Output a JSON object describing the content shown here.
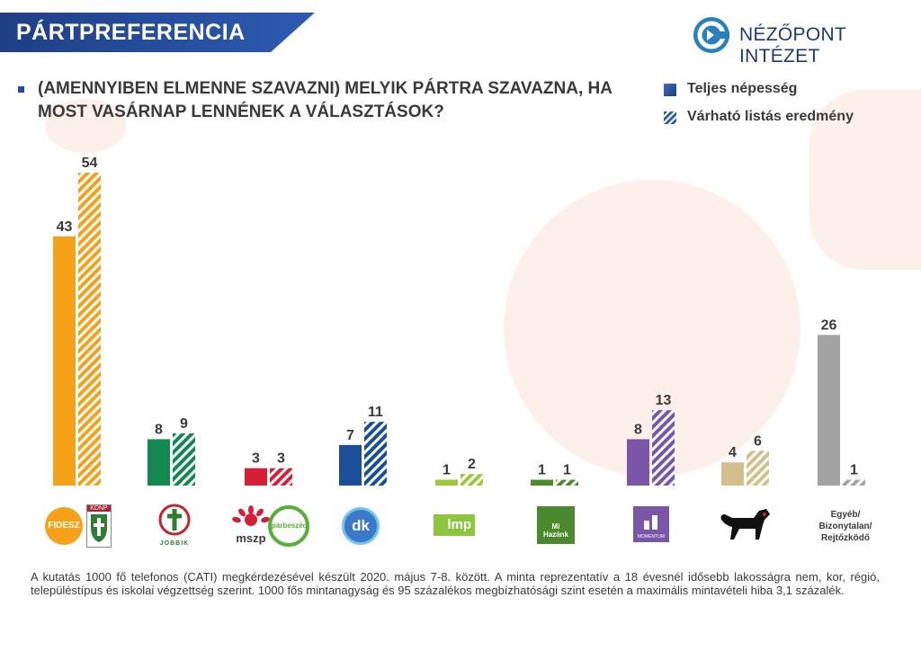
{
  "header": {
    "title": "PÁRTPREFERENCIA",
    "logo_text": "NÉZŐPONT INTÉZET"
  },
  "question": "(AMENNYIBEN ELMENNE SZAVAZNI) MELYIK PÁRTRA SZAVAZNA, HA MOST VASÁRNAP LENNÉNEK A VÁLASZTÁSOK?",
  "legend": {
    "series1": "Teljes népesség",
    "series2": "Várható listás eredmény"
  },
  "chart_data": {
    "type": "bar",
    "categories": [
      "Fidesz-KDNP",
      "Jobbik",
      "MSZP-Párbeszéd",
      "DK",
      "LMP",
      "Mi Hazánk",
      "Momentum",
      "MKKP",
      "Egyéb/Bizonytalan/Rejtőzködő"
    ],
    "series": [
      {
        "name": "Teljes népesség",
        "values": [
          43,
          8,
          3,
          7,
          1,
          1,
          8,
          4,
          26
        ]
      },
      {
        "name": "Várható listás eredmény",
        "values": [
          54,
          9,
          3,
          11,
          2,
          1,
          13,
          6,
          1
        ]
      }
    ],
    "colors": [
      "#f5a21a",
      "#14894f",
      "#d51f37",
      "#1a4f98",
      "#9cc83a",
      "#4a8a2c",
      "#7a56a8",
      "#d3bf8b",
      "#a3a3a3"
    ],
    "ylim": [
      0,
      54
    ]
  },
  "party_labels": {
    "fidesz": "FIDESZ",
    "kdnp": "KDNP",
    "jobbik": "JOBBIK",
    "mszp": "mszp",
    "parbeszed": "párbeszéd",
    "dk": "dk",
    "lmp": "lmp",
    "mihazank_1": "Mi",
    "mihazank_2": "Hazánk",
    "momentum": "MOMENTUM",
    "other_1": "Egyéb/",
    "other_2": "Bizonytalan/",
    "other_3": "Rejtőzködő"
  },
  "footnote": "A kutatás 1000 fő telefonos (CATI) megkérdezésével készült 2020. május 7-8. között. A minta reprezentatív a 18 évesnél idősebb lakosságra nem, kor, régió, településtípus és iskolai végzettség szerint. 1000 fős mintanagyság és 95 százalékos megbízhatósági szint esetén a maximális mintavételi hiba 3,1 százalék."
}
